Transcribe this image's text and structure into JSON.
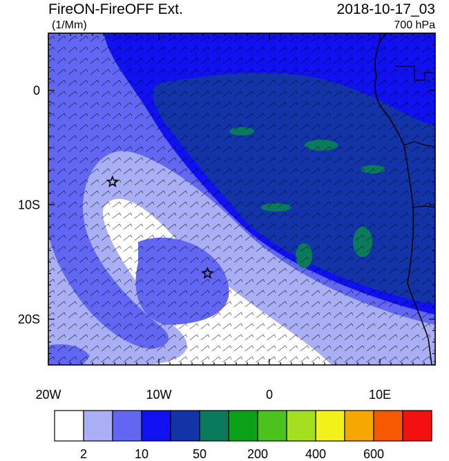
{
  "header": {
    "title": "FireON-FireOFF Ext.",
    "units": "(1/Mm)",
    "datetime": "2018-10-17_03",
    "level": "700 hPa"
  },
  "map": {
    "lon_range": [
      -20,
      15
    ],
    "lat_range": [
      -24,
      5
    ],
    "lat_ticks": [
      {
        "value": 0,
        "label": "0"
      },
      {
        "value": -10,
        "label": "10S"
      },
      {
        "value": -20,
        "label": "20S"
      }
    ],
    "lon_ticks": [
      {
        "value": -20,
        "label": "20W"
      },
      {
        "value": -10,
        "label": "10W"
      },
      {
        "value": 0,
        "label": "0"
      },
      {
        "value": 10,
        "label": "10E"
      }
    ],
    "markers": [
      {
        "type": "star",
        "lon": -14.2,
        "lat": -8.0
      },
      {
        "type": "star",
        "lon": -5.6,
        "lat": -16.0
      }
    ],
    "field": "extinction coefficient difference",
    "vector_field": "wind barbs"
  },
  "colorbar": {
    "colors": [
      "#ffffff",
      "#a9aef5",
      "#6167f2",
      "#1010f0",
      "#1234a8",
      "#0a7a5c",
      "#0aa018",
      "#4cc21c",
      "#a4e020",
      "#f2f21a",
      "#f7a800",
      "#f55a00",
      "#f21010"
    ],
    "tick_labels": [
      {
        "label": "2",
        "boundary": 1
      },
      {
        "label": "10",
        "boundary": 3
      },
      {
        "label": "50",
        "boundary": 5
      },
      {
        "label": "200",
        "boundary": 7
      },
      {
        "label": "400",
        "boundary": 9
      },
      {
        "label": "600",
        "boundary": 11
      }
    ]
  }
}
